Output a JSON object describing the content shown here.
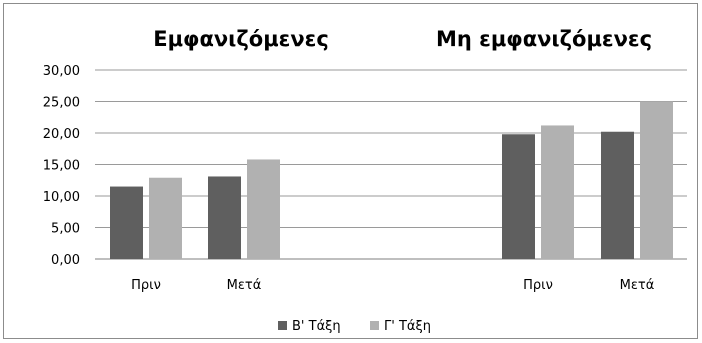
{
  "chart_data": {
    "type": "bar",
    "groups": [
      {
        "title": "Εμφανιζόμενες",
        "categories": [
          "Πριν",
          "Μετά"
        ]
      },
      {
        "title": "Μη εμφανιζόμενες",
        "categories": [
          "Πριν",
          "Μετά"
        ]
      }
    ],
    "series": [
      {
        "name": "Β' Τάξη",
        "color": "#5f5f5f",
        "values": [
          11.5,
          13.1,
          19.8,
          20.2
        ]
      },
      {
        "name": "Γ' Τάξη",
        "color": "#b1b1b1",
        "values": [
          12.9,
          15.8,
          21.2,
          25.0
        ]
      }
    ],
    "ylim": [
      0,
      30
    ],
    "yticks": [
      "0,00",
      "5,00",
      "10,00",
      "15,00",
      "20,00",
      "25,00",
      "30,00"
    ],
    "grid": true,
    "legend_position": "bottom"
  }
}
